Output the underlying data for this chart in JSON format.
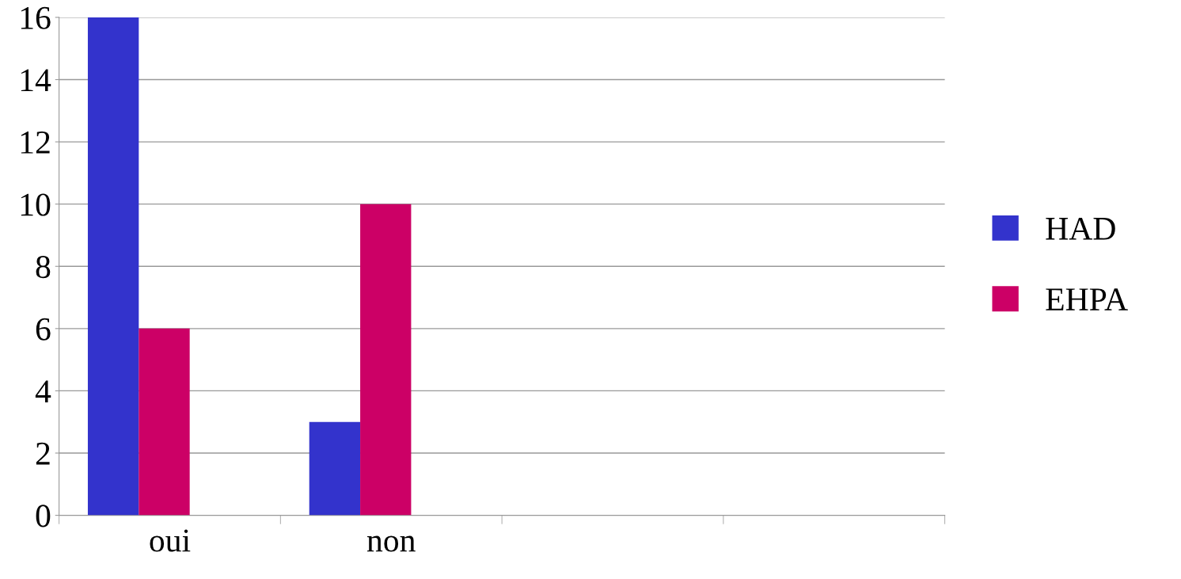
{
  "chart_data": {
    "type": "bar",
    "categories": [
      "oui",
      "non",
      null,
      null
    ],
    "series": [
      {
        "name": "HAD",
        "color": "#3333cc",
        "values": [
          16,
          3,
          null,
          null
        ]
      },
      {
        "name": "EHPA",
        "color": "#cc0066",
        "values": [
          6,
          10,
          null,
          null
        ]
      }
    ],
    "ylim": [
      0,
      16
    ],
    "yticks": [
      0,
      2,
      4,
      6,
      8,
      10,
      12,
      14,
      16
    ],
    "grid": "y",
    "legend": "right"
  }
}
